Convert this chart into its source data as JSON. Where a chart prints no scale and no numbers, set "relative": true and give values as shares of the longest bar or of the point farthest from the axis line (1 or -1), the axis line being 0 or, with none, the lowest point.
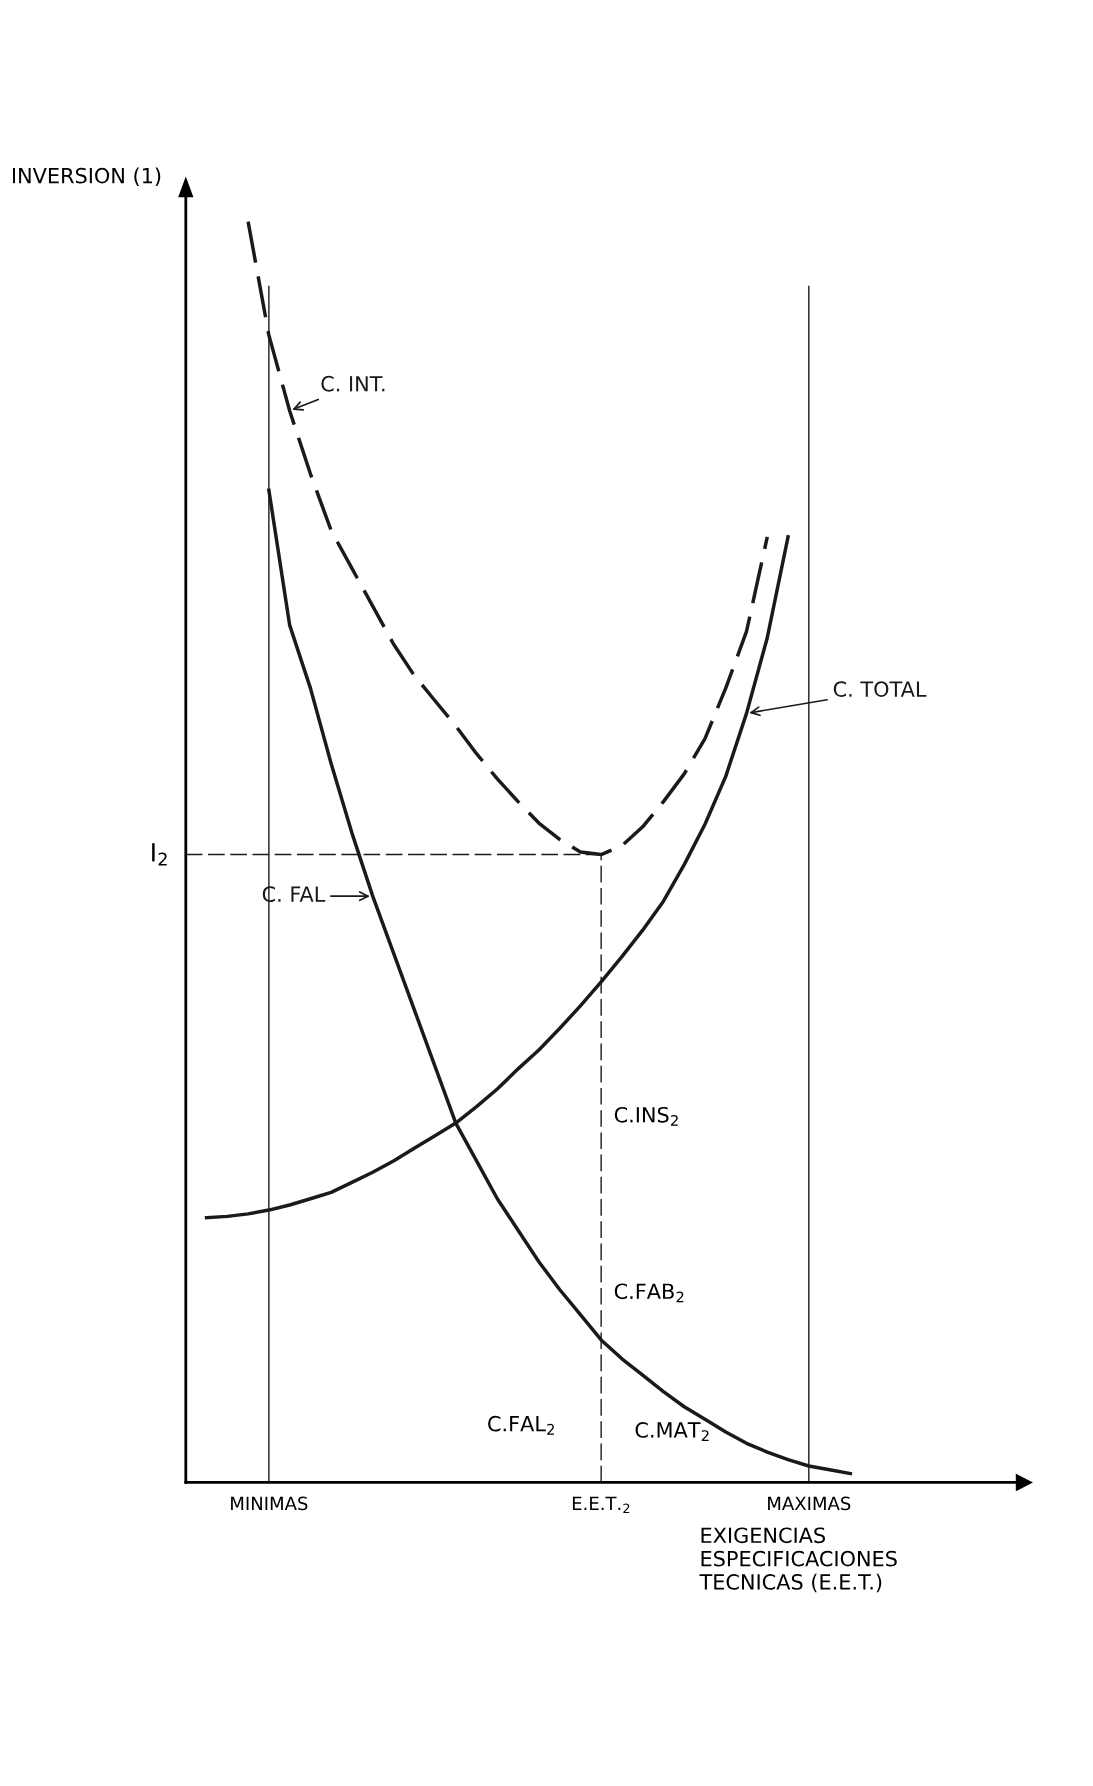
{
  "chart_data": {
    "type": "line",
    "relative": true,
    "ylabel": "INVERSION (1)",
    "xlabel": "EXIGENCIAS\nESPECIFICACIONES\nTECNICAS (E.E.T.)",
    "categories": [
      null,
      null,
      null,
      null,
      "MINIMAS",
      null,
      null,
      null,
      null,
      null,
      null,
      null,
      null,
      null,
      null,
      null,
      null,
      null,
      null,
      null,
      "E.E.T.$_{2}$",
      null,
      null,
      null,
      null,
      null,
      null,
      null,
      null,
      null,
      "MAXIMAS",
      null,
      null,
      null,
      null,
      null,
      null,
      null,
      null,
      null,
      null
    ],
    "grid": false,
    "marker": "none",
    "series": [
      {
        "name": "C. INT.",
        "color": "#1a1a1a",
        "line_style": "dashed",
        "values": [
          null,
          null,
          null,
          1,
          0.91,
          0.85,
          0.8,
          0.755,
          0.725,
          0.695,
          0.665,
          0.64,
          0.62,
          0.6,
          0.578,
          0.558,
          0.54,
          0.523,
          0.51,
          0.5,
          0.498,
          0.505,
          0.52,
          0.54,
          0.562,
          0.59,
          0.63,
          0.675,
          0.75,
          null,
          null,
          null,
          null,
          null,
          null,
          null,
          null,
          null,
          null,
          null,
          null
        ]
      },
      {
        "name": "C. TOTAL",
        "color": "#1a1a1a",
        "line_style": "solid",
        "values": [
          null,
          0.21,
          0.211,
          0.213,
          0.216,
          0.22,
          0.225,
          0.23,
          0.238,
          0.246,
          0.255,
          0.265,
          0.275,
          0.285,
          0.298,
          0.312,
          0.328,
          0.343,
          0.36,
          0.378,
          0.397,
          0.417,
          0.438,
          0.461,
          0.49,
          0.522,
          0.56,
          0.61,
          0.67,
          0.75,
          null,
          null,
          null,
          null,
          null,
          null,
          null,
          null,
          null,
          null,
          null
        ]
      },
      {
        "name": "C. FAL",
        "color": "#1a1a1a",
        "line_style": "solid",
        "values": [
          null,
          null,
          null,
          null,
          0.787,
          0.68,
          0.63,
          0.57,
          0.515,
          0.465,
          0.42,
          0.375,
          0.33,
          0.285,
          0.255,
          0.225,
          0.2,
          0.175,
          0.153,
          0.133,
          0.113,
          0.098,
          0.085,
          0.072,
          0.06,
          0.05,
          0.04,
          0.031,
          0.024,
          0.018,
          0.013,
          0.01,
          0.007,
          null,
          null,
          null,
          null,
          null,
          null,
          null,
          null
        ]
      }
    ],
    "ref_lines": [
      {
        "axis": "y",
        "value": 0.498,
        "label": "I$_{2}$",
        "line_style": "dashed",
        "color": "#1a1a1a"
      },
      {
        "axis": "x",
        "value": "E.E.T.$_{2}$",
        "line_style": "dashed",
        "color": "#1a1a1a"
      },
      {
        "axis": "x",
        "value": "MINIMAS",
        "line_style": "solid",
        "color": "#1a1a1a"
      },
      {
        "axis": "x",
        "value": "MAXIMAS",
        "line_style": "solid",
        "color": "#1a1a1a"
      }
    ],
    "annotations": [
      "C.INS$_{2}$",
      "C.FAB$_{2}$",
      "C.FAL$_{2}$",
      "C.MAT$_{2}$"
    ]
  }
}
